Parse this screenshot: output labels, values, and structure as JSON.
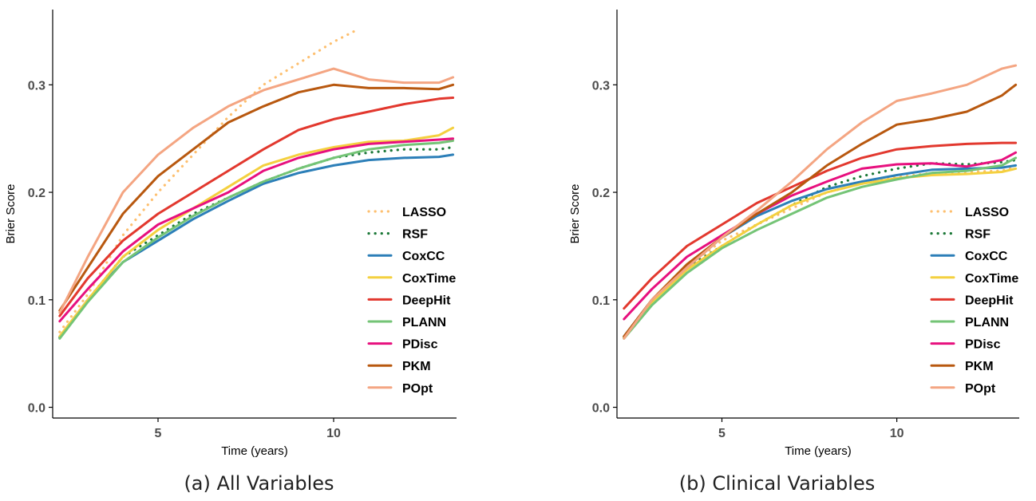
{
  "chart_data": [
    {
      "type": "line",
      "caption": "(a) All Variables",
      "xlabel": "Time (years)",
      "ylabel": "Brier Score",
      "xlim": [
        2,
        13.5
      ],
      "ylim": [
        -0.01,
        0.37
      ],
      "xticks": [
        5,
        10
      ],
      "yticks": [
        0.0,
        0.1,
        0.2,
        0.3
      ],
      "ytick_labels": [
        "0.0",
        "0.1",
        "0.2",
        "0.3"
      ],
      "legend": "right",
      "grid": false,
      "series": [
        {
          "name": "LASSO",
          "color": "#FDBF6F",
          "dash": "dot",
          "points": [
            [
              2.2,
              0.07
            ],
            [
              3,
              0.105
            ],
            [
              4,
              0.16
            ],
            [
              5,
              0.2
            ],
            [
              6,
              0.235
            ],
            [
              7,
              0.27
            ],
            [
              8,
              0.3
            ],
            [
              9,
              0.32
            ],
            [
              10,
              0.34
            ],
            [
              10.6,
              0.35
            ]
          ]
        },
        {
          "name": "RSF",
          "color": "#1B7837",
          "dash": "dot",
          "points": [
            [
              2.2,
              0.065
            ],
            [
              3,
              0.1
            ],
            [
              4,
              0.14
            ],
            [
              5,
              0.16
            ],
            [
              6,
              0.18
            ],
            [
              7,
              0.195
            ],
            [
              8,
              0.21
            ],
            [
              9,
              0.222
            ],
            [
              10,
              0.232
            ],
            [
              11,
              0.237
            ],
            [
              12,
              0.24
            ],
            [
              13,
              0.24
            ],
            [
              13.4,
              0.242
            ]
          ]
        },
        {
          "name": "CoxCC",
          "color": "#2C7FB8",
          "dash": "solid",
          "points": [
            [
              2.2,
              0.065
            ],
            [
              3,
              0.1
            ],
            [
              4,
              0.135
            ],
            [
              5,
              0.155
            ],
            [
              6,
              0.175
            ],
            [
              7,
              0.192
            ],
            [
              8,
              0.208
            ],
            [
              9,
              0.218
            ],
            [
              10,
              0.225
            ],
            [
              11,
              0.23
            ],
            [
              12,
              0.232
            ],
            [
              13,
              0.233
            ],
            [
              13.4,
              0.235
            ]
          ]
        },
        {
          "name": "CoxTime",
          "color": "#F4D03F",
          "dash": "solid",
          "points": [
            [
              2.2,
              0.066
            ],
            [
              3,
              0.1
            ],
            [
              4,
              0.14
            ],
            [
              5,
              0.165
            ],
            [
              6,
              0.185
            ],
            [
              7,
              0.205
            ],
            [
              8,
              0.225
            ],
            [
              9,
              0.235
            ],
            [
              10,
              0.242
            ],
            [
              11,
              0.247
            ],
            [
              12,
              0.248
            ],
            [
              13,
              0.253
            ],
            [
              13.4,
              0.26
            ]
          ]
        },
        {
          "name": "DeepHit",
          "color": "#E2382E",
          "dash": "solid",
          "points": [
            [
              2.2,
              0.085
            ],
            [
              3,
              0.12
            ],
            [
              4,
              0.155
            ],
            [
              5,
              0.18
            ],
            [
              6,
              0.2
            ],
            [
              7,
              0.22
            ],
            [
              8,
              0.24
            ],
            [
              9,
              0.258
            ],
            [
              10,
              0.268
            ],
            [
              11,
              0.275
            ],
            [
              12,
              0.282
            ],
            [
              13,
              0.287
            ],
            [
              13.4,
              0.288
            ]
          ]
        },
        {
          "name": "PLANN",
          "color": "#74C476",
          "dash": "solid",
          "points": [
            [
              2.2,
              0.064
            ],
            [
              3,
              0.098
            ],
            [
              4,
              0.135
            ],
            [
              5,
              0.158
            ],
            [
              6,
              0.178
            ],
            [
              7,
              0.195
            ],
            [
              8,
              0.21
            ],
            [
              9,
              0.222
            ],
            [
              10,
              0.232
            ],
            [
              11,
              0.24
            ],
            [
              12,
              0.244
            ],
            [
              13,
              0.246
            ],
            [
              13.4,
              0.248
            ]
          ]
        },
        {
          "name": "PDisc",
          "color": "#E7107E",
          "dash": "solid",
          "points": [
            [
              2.2,
              0.08
            ],
            [
              3,
              0.11
            ],
            [
              4,
              0.145
            ],
            [
              5,
              0.17
            ],
            [
              6,
              0.185
            ],
            [
              7,
              0.2
            ],
            [
              8,
              0.22
            ],
            [
              9,
              0.232
            ],
            [
              10,
              0.24
            ],
            [
              11,
              0.245
            ],
            [
              12,
              0.247
            ],
            [
              13,
              0.249
            ],
            [
              13.4,
              0.25
            ]
          ]
        },
        {
          "name": "PKM",
          "color": "#B8580F",
          "dash": "solid",
          "points": [
            [
              2.2,
              0.09
            ],
            [
              3,
              0.13
            ],
            [
              4,
              0.18
            ],
            [
              5,
              0.215
            ],
            [
              6,
              0.24
            ],
            [
              7,
              0.265
            ],
            [
              8,
              0.28
            ],
            [
              9,
              0.293
            ],
            [
              10,
              0.3
            ],
            [
              11,
              0.297
            ],
            [
              12,
              0.297
            ],
            [
              13,
              0.296
            ],
            [
              13.4,
              0.3
            ]
          ]
        },
        {
          "name": "POpt",
          "color": "#F4A582",
          "dash": "solid",
          "points": [
            [
              2.2,
              0.088
            ],
            [
              3,
              0.14
            ],
            [
              4,
              0.2
            ],
            [
              5,
              0.235
            ],
            [
              6,
              0.26
            ],
            [
              7,
              0.28
            ],
            [
              8,
              0.295
            ],
            [
              9,
              0.305
            ],
            [
              10,
              0.315
            ],
            [
              11,
              0.305
            ],
            [
              12,
              0.302
            ],
            [
              13,
              0.302
            ],
            [
              13.4,
              0.307
            ]
          ]
        }
      ]
    },
    {
      "type": "line",
      "caption": "(b) Clinical Variables",
      "xlabel": "Time (years)",
      "ylabel": "Brier Score",
      "xlim": [
        2,
        13.5
      ],
      "ylim": [
        -0.01,
        0.37
      ],
      "xticks": [
        5,
        10
      ],
      "yticks": [
        0.0,
        0.1,
        0.2,
        0.3
      ],
      "ytick_labels": [
        "0.0",
        "0.1",
        "0.2",
        "0.3"
      ],
      "legend": "right",
      "grid": false,
      "series": [
        {
          "name": "LASSO",
          "color": "#FDBF6F",
          "dash": "dot",
          "points": [
            [
              2.2,
              0.065
            ],
            [
              3,
              0.1
            ],
            [
              4,
              0.13
            ],
            [
              5,
              0.155
            ],
            [
              6,
              0.17
            ],
            [
              7,
              0.185
            ],
            [
              8,
              0.2
            ],
            [
              9,
              0.208
            ],
            [
              10,
              0.214
            ],
            [
              11,
              0.218
            ],
            [
              12,
              0.219
            ],
            [
              13,
              0.22
            ],
            [
              13.4,
              0.224
            ]
          ]
        },
        {
          "name": "RSF",
          "color": "#1B7837",
          "dash": "dot",
          "points": [
            [
              2.2,
              0.065
            ],
            [
              3,
              0.1
            ],
            [
              4,
              0.13
            ],
            [
              5,
              0.15
            ],
            [
              6,
              0.17
            ],
            [
              7,
              0.188
            ],
            [
              8,
              0.205
            ],
            [
              9,
              0.215
            ],
            [
              10,
              0.222
            ],
            [
              11,
              0.227
            ],
            [
              12,
              0.226
            ],
            [
              13,
              0.228
            ],
            [
              13.4,
              0.23
            ]
          ]
        },
        {
          "name": "CoxCC",
          "color": "#2C7FB8",
          "dash": "solid",
          "points": [
            [
              2.2,
              0.066
            ],
            [
              3,
              0.1
            ],
            [
              4,
              0.13
            ],
            [
              5,
              0.158
            ],
            [
              6,
              0.178
            ],
            [
              7,
              0.192
            ],
            [
              8,
              0.203
            ],
            [
              9,
              0.21
            ],
            [
              10,
              0.216
            ],
            [
              11,
              0.221
            ],
            [
              12,
              0.222
            ],
            [
              13,
              0.223
            ],
            [
              13.4,
              0.225
            ]
          ]
        },
        {
          "name": "CoxTime",
          "color": "#F4D03F",
          "dash": "solid",
          "points": [
            [
              2.2,
              0.065
            ],
            [
              3,
              0.098
            ],
            [
              4,
              0.128
            ],
            [
              5,
              0.15
            ],
            [
              6,
              0.17
            ],
            [
              7,
              0.188
            ],
            [
              8,
              0.2
            ],
            [
              9,
              0.208
            ],
            [
              10,
              0.213
            ],
            [
              11,
              0.216
            ],
            [
              12,
              0.217
            ],
            [
              13,
              0.219
            ],
            [
              13.4,
              0.222
            ]
          ]
        },
        {
          "name": "DeepHit",
          "color": "#E2382E",
          "dash": "solid",
          "points": [
            [
              2.2,
              0.092
            ],
            [
              3,
              0.12
            ],
            [
              4,
              0.15
            ],
            [
              5,
              0.17
            ],
            [
              6,
              0.19
            ],
            [
              7,
              0.205
            ],
            [
              8,
              0.22
            ],
            [
              9,
              0.232
            ],
            [
              10,
              0.24
            ],
            [
              11,
              0.243
            ],
            [
              12,
              0.245
            ],
            [
              13,
              0.246
            ],
            [
              13.4,
              0.246
            ]
          ]
        },
        {
          "name": "PLANN",
          "color": "#74C476",
          "dash": "solid",
          "points": [
            [
              2.2,
              0.064
            ],
            [
              3,
              0.095
            ],
            [
              4,
              0.125
            ],
            [
              5,
              0.148
            ],
            [
              6,
              0.165
            ],
            [
              7,
              0.18
            ],
            [
              8,
              0.195
            ],
            [
              9,
              0.205
            ],
            [
              10,
              0.212
            ],
            [
              11,
              0.218
            ],
            [
              12,
              0.22
            ],
            [
              13,
              0.225
            ],
            [
              13.4,
              0.232
            ]
          ]
        },
        {
          "name": "PDisc",
          "color": "#E7107E",
          "dash": "solid",
          "points": [
            [
              2.2,
              0.082
            ],
            [
              3,
              0.11
            ],
            [
              4,
              0.14
            ],
            [
              5,
              0.16
            ],
            [
              6,
              0.18
            ],
            [
              7,
              0.197
            ],
            [
              8,
              0.21
            ],
            [
              9,
              0.222
            ],
            [
              10,
              0.226
            ],
            [
              11,
              0.227
            ],
            [
              12,
              0.224
            ],
            [
              13,
              0.23
            ],
            [
              13.4,
              0.237
            ]
          ]
        },
        {
          "name": "PKM",
          "color": "#B8580F",
          "dash": "solid",
          "points": [
            [
              2.2,
              0.066
            ],
            [
              3,
              0.1
            ],
            [
              4,
              0.133
            ],
            [
              5,
              0.158
            ],
            [
              6,
              0.18
            ],
            [
              7,
              0.2
            ],
            [
              8,
              0.225
            ],
            [
              9,
              0.245
            ],
            [
              10,
              0.263
            ],
            [
              11,
              0.268
            ],
            [
              12,
              0.275
            ],
            [
              13,
              0.29
            ],
            [
              13.4,
              0.3
            ]
          ]
        },
        {
          "name": "POpt",
          "color": "#F4A582",
          "dash": "solid",
          "points": [
            [
              2.2,
              0.064
            ],
            [
              3,
              0.1
            ],
            [
              4,
              0.13
            ],
            [
              5,
              0.158
            ],
            [
              6,
              0.183
            ],
            [
              7,
              0.21
            ],
            [
              8,
              0.24
            ],
            [
              9,
              0.265
            ],
            [
              10,
              0.285
            ],
            [
              11,
              0.292
            ],
            [
              12,
              0.3
            ],
            [
              13,
              0.315
            ],
            [
              13.4,
              0.318
            ]
          ]
        }
      ]
    }
  ]
}
